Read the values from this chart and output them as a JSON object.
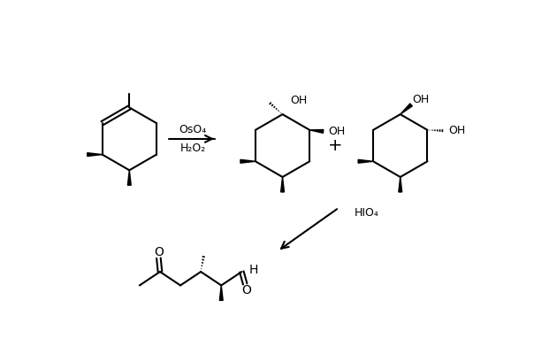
{
  "bg": "#ffffff",
  "reagent1": "OsO₄",
  "reagent2": "H₂O₂",
  "reagent3": "HIO₄",
  "OH": "OH",
  "O": "O",
  "H": "H",
  "plus": "+"
}
